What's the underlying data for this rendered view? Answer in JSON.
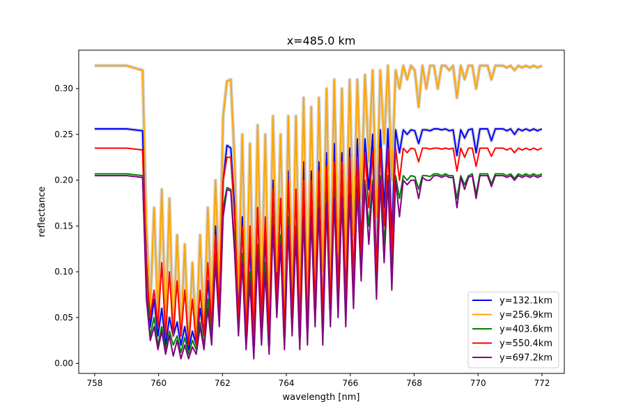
{
  "chart_data": {
    "type": "line",
    "title": "x=485.0 km",
    "xlabel": "wavelength [nm]",
    "ylabel": "reflectance",
    "xlim": [
      757.5,
      772.7
    ],
    "ylim": [
      -0.011,
      0.342
    ],
    "xticks": [
      758,
      760,
      762,
      764,
      766,
      768,
      770,
      772
    ],
    "yticks": [
      0.0,
      0.05,
      0.1,
      0.15,
      0.2,
      0.25,
      0.3
    ],
    "ytick_labels": [
      "0.00",
      "0.05",
      "0.10",
      "0.15",
      "0.20",
      "0.25",
      "0.30"
    ],
    "grid": false,
    "legend_position": "lower-right",
    "x": [
      758.0,
      759.0,
      759.5,
      759.62,
      759.74,
      759.86,
      759.98,
      760.1,
      760.22,
      760.34,
      760.46,
      760.58,
      760.7,
      760.82,
      760.94,
      761.06,
      761.18,
      761.3,
      761.42,
      761.54,
      761.66,
      761.78,
      761.9,
      762.02,
      762.14,
      762.26,
      762.38,
      762.5,
      762.62,
      762.74,
      762.86,
      762.98,
      763.1,
      763.22,
      763.34,
      763.46,
      763.58,
      763.7,
      763.82,
      763.94,
      764.06,
      764.18,
      764.3,
      764.42,
      764.54,
      764.66,
      764.78,
      764.9,
      765.02,
      765.14,
      765.26,
      765.38,
      765.5,
      765.62,
      765.74,
      765.86,
      765.98,
      766.1,
      766.22,
      766.34,
      766.46,
      766.58,
      766.7,
      766.82,
      766.94,
      767.06,
      767.18,
      767.3,
      767.42,
      767.54,
      767.66,
      767.78,
      767.9,
      768.02,
      768.14,
      768.26,
      768.38,
      768.5,
      768.62,
      768.74,
      768.86,
      768.98,
      769.1,
      769.22,
      769.34,
      769.46,
      769.58,
      769.7,
      769.82,
      769.94,
      770.06,
      770.18,
      770.3,
      770.42,
      770.54,
      770.66,
      770.78,
      770.9,
      771.02,
      771.14,
      771.26,
      771.38,
      771.5,
      771.62,
      771.74,
      771.86,
      772.0
    ],
    "series": [
      {
        "name": "y=132.1km",
        "color": "#0000ff",
        "band": true,
        "values": [
          0.256,
          0.256,
          0.254,
          0.11,
          0.04,
          0.07,
          0.03,
          0.06,
          0.02,
          0.05,
          0.03,
          0.045,
          0.02,
          0.04,
          0.015,
          0.035,
          0.02,
          0.06,
          0.03,
          0.09,
          0.04,
          0.15,
          0.06,
          0.2,
          0.238,
          0.235,
          0.17,
          0.05,
          0.16,
          0.03,
          0.13,
          0.02,
          0.17,
          0.04,
          0.14,
          0.02,
          0.2,
          0.08,
          0.18,
          0.03,
          0.21,
          0.05,
          0.19,
          0.03,
          0.22,
          0.04,
          0.21,
          0.06,
          0.22,
          0.04,
          0.23,
          0.06,
          0.24,
          0.08,
          0.23,
          0.07,
          0.235,
          0.09,
          0.245,
          0.13,
          0.245,
          0.19,
          0.25,
          0.1,
          0.255,
          0.17,
          0.256,
          0.14,
          0.255,
          0.23,
          0.255,
          0.25,
          0.255,
          0.254,
          0.24,
          0.255,
          0.255,
          0.254,
          0.256,
          0.256,
          0.255,
          0.256,
          0.254,
          0.255,
          0.227,
          0.255,
          0.246,
          0.255,
          0.256,
          0.23,
          0.256,
          0.256,
          0.256,
          0.243,
          0.256,
          0.256,
          0.256,
          0.254,
          0.256,
          0.25,
          0.256,
          0.254,
          0.256,
          0.254,
          0.256,
          0.254,
          0.256
        ]
      },
      {
        "name": "y=256.9km",
        "color": "#ffa500",
        "band": true,
        "values": [
          0.325,
          0.325,
          0.32,
          0.15,
          0.06,
          0.17,
          0.05,
          0.19,
          0.04,
          0.18,
          0.03,
          0.14,
          0.03,
          0.13,
          0.02,
          0.11,
          0.025,
          0.14,
          0.03,
          0.17,
          0.05,
          0.2,
          0.08,
          0.27,
          0.308,
          0.31,
          0.22,
          0.08,
          0.25,
          0.05,
          0.24,
          0.04,
          0.26,
          0.07,
          0.25,
          0.04,
          0.27,
          0.1,
          0.25,
          0.05,
          0.27,
          0.07,
          0.27,
          0.06,
          0.29,
          0.07,
          0.28,
          0.09,
          0.29,
          0.1,
          0.3,
          0.08,
          0.31,
          0.12,
          0.3,
          0.11,
          0.31,
          0.14,
          0.31,
          0.18,
          0.315,
          0.22,
          0.32,
          0.16,
          0.32,
          0.24,
          0.325,
          0.2,
          0.32,
          0.3,
          0.325,
          0.31,
          0.325,
          0.32,
          0.28,
          0.325,
          0.3,
          0.325,
          0.325,
          0.3,
          0.325,
          0.325,
          0.32,
          0.325,
          0.29,
          0.325,
          0.31,
          0.325,
          0.325,
          0.3,
          0.325,
          0.325,
          0.325,
          0.31,
          0.325,
          0.325,
          0.325,
          0.323,
          0.325,
          0.32,
          0.325,
          0.323,
          0.325,
          0.323,
          0.325,
          0.323,
          0.325
        ]
      },
      {
        "name": "y=403.6km",
        "color": "#008000",
        "band": false,
        "values": [
          0.207,
          0.207,
          0.205,
          0.08,
          0.03,
          0.05,
          0.02,
          0.04,
          0.015,
          0.035,
          0.02,
          0.03,
          0.012,
          0.028,
          0.01,
          0.025,
          0.015,
          0.045,
          0.02,
          0.07,
          0.03,
          0.12,
          0.05,
          0.17,
          0.192,
          0.19,
          0.13,
          0.04,
          0.12,
          0.02,
          0.1,
          0.015,
          0.13,
          0.03,
          0.11,
          0.015,
          0.16,
          0.06,
          0.14,
          0.02,
          0.16,
          0.04,
          0.15,
          0.02,
          0.17,
          0.03,
          0.17,
          0.05,
          0.18,
          0.03,
          0.185,
          0.05,
          0.19,
          0.06,
          0.19,
          0.05,
          0.195,
          0.07,
          0.2,
          0.1,
          0.2,
          0.15,
          0.2,
          0.08,
          0.205,
          0.13,
          0.205,
          0.1,
          0.205,
          0.18,
          0.205,
          0.2,
          0.205,
          0.204,
          0.19,
          0.205,
          0.205,
          0.204,
          0.207,
          0.207,
          0.205,
          0.207,
          0.205,
          0.205,
          0.18,
          0.205,
          0.195,
          0.205,
          0.207,
          0.185,
          0.207,
          0.207,
          0.207,
          0.196,
          0.207,
          0.207,
          0.207,
          0.205,
          0.207,
          0.202,
          0.207,
          0.205,
          0.207,
          0.205,
          0.207,
          0.205,
          0.207
        ]
      },
      {
        "name": "y=550.4km",
        "color": "#ff0000",
        "band": false,
        "values": [
          0.235,
          0.235,
          0.233,
          0.1,
          0.05,
          0.08,
          0.04,
          0.11,
          0.03,
          0.1,
          0.03,
          0.09,
          0.03,
          0.08,
          0.02,
          0.07,
          0.02,
          0.08,
          0.03,
          0.11,
          0.04,
          0.14,
          0.06,
          0.2,
          0.225,
          0.225,
          0.16,
          0.05,
          0.15,
          0.03,
          0.15,
          0.03,
          0.17,
          0.05,
          0.16,
          0.03,
          0.19,
          0.07,
          0.18,
          0.03,
          0.2,
          0.05,
          0.19,
          0.04,
          0.2,
          0.04,
          0.2,
          0.06,
          0.21,
          0.05,
          0.215,
          0.06,
          0.22,
          0.08,
          0.22,
          0.07,
          0.225,
          0.09,
          0.225,
          0.12,
          0.23,
          0.17,
          0.23,
          0.1,
          0.235,
          0.15,
          0.235,
          0.12,
          0.235,
          0.2,
          0.235,
          0.23,
          0.235,
          0.234,
          0.22,
          0.235,
          0.235,
          0.234,
          0.235,
          0.235,
          0.234,
          0.235,
          0.234,
          0.235,
          0.21,
          0.235,
          0.225,
          0.235,
          0.235,
          0.215,
          0.235,
          0.235,
          0.235,
          0.226,
          0.235,
          0.235,
          0.235,
          0.233,
          0.235,
          0.23,
          0.235,
          0.233,
          0.235,
          0.233,
          0.235,
          0.233,
          0.235
        ]
      },
      {
        "name": "y=697.2km",
        "color": "#800080",
        "band": false,
        "values": [
          0.205,
          0.205,
          0.203,
          0.07,
          0.025,
          0.04,
          0.015,
          0.035,
          0.01,
          0.03,
          0.008,
          0.025,
          0.005,
          0.02,
          0.005,
          0.018,
          0.01,
          0.04,
          0.015,
          0.06,
          0.02,
          0.11,
          0.04,
          0.16,
          0.19,
          0.188,
          0.12,
          0.03,
          0.11,
          0.015,
          0.09,
          0.005,
          0.12,
          0.02,
          0.1,
          0.01,
          0.15,
          0.05,
          0.13,
          0.015,
          0.15,
          0.03,
          0.14,
          0.015,
          0.16,
          0.02,
          0.16,
          0.04,
          0.17,
          0.02,
          0.175,
          0.04,
          0.18,
          0.05,
          0.18,
          0.04,
          0.185,
          0.06,
          0.19,
          0.09,
          0.195,
          0.13,
          0.195,
          0.07,
          0.2,
          0.11,
          0.2,
          0.08,
          0.2,
          0.16,
          0.2,
          0.195,
          0.2,
          0.2,
          0.18,
          0.203,
          0.2,
          0.2,
          0.205,
          0.205,
          0.203,
          0.205,
          0.203,
          0.203,
          0.17,
          0.203,
          0.19,
          0.203,
          0.205,
          0.18,
          0.205,
          0.205,
          0.205,
          0.193,
          0.205,
          0.205,
          0.205,
          0.203,
          0.205,
          0.2,
          0.205,
          0.203,
          0.205,
          0.203,
          0.205,
          0.203,
          0.205
        ]
      }
    ]
  }
}
